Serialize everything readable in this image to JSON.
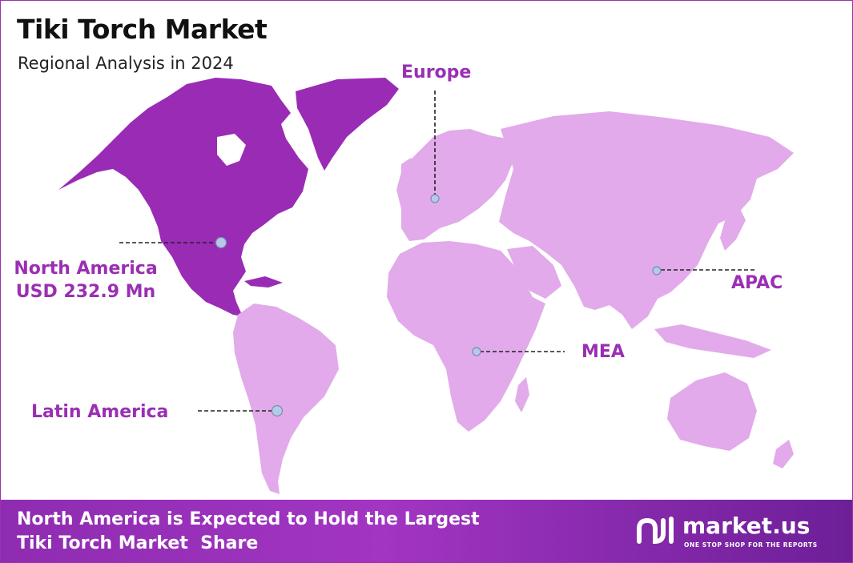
{
  "title": "Tiki Torch Market",
  "subtitle": "Regional Analysis in 2024",
  "colors": {
    "accent": "#9a2fb3",
    "highlight_region": "#9a2bb4",
    "other_regions": "#e2aaea",
    "footer": "#8e2cb1"
  },
  "regions": {
    "europe": {
      "label": "Europe"
    },
    "north_america": {
      "label": "North America",
      "value": "USD 232.9 Mn"
    },
    "apac": {
      "label": "APAC"
    },
    "mea": {
      "label": "MEA"
    },
    "latin_america": {
      "label": "Latin America"
    }
  },
  "footer": {
    "line1": "North America is Expected to Hold the Largest",
    "line2": "Tiki Torch Market  Share"
  },
  "brand": {
    "name": "market.us",
    "tagline": "ONE STOP SHOP FOR THE REPORTS"
  }
}
